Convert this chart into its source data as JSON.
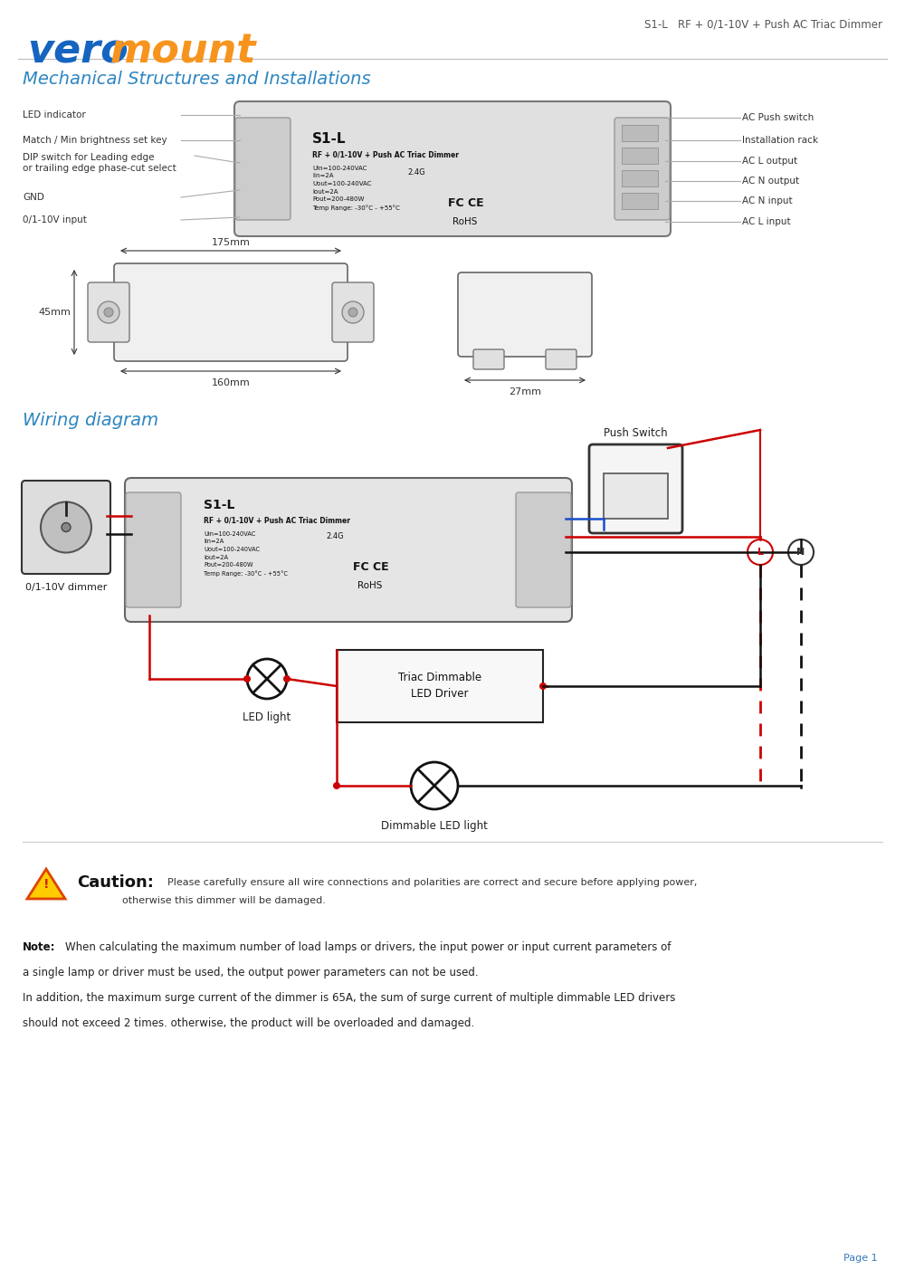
{
  "bg_color": "#ffffff",
  "logo_vero": "vero",
  "logo_mount": "mount",
  "logo_color_vero": "#1a6fba",
  "logo_color_mount": "#f7941d",
  "header_right": "S1-L   RF + 0/1-10V + Push AC Triac Dimmer",
  "section1_title": "Mechanical Structures and Installations",
  "section2_title": "Wiring diagram",
  "section_title_color": "#2e86c1",
  "left_labels": [
    "LED indicator",
    "Match / Min brightness set key",
    "DIP switch for Leading edge\nor trailing edge phase-cut select",
    "GND",
    "0/1-10V input"
  ],
  "right_labels": [
    "AC Push switch",
    "Installation rack",
    "AC L output",
    "AC N output",
    "AC N input",
    "AC L input"
  ],
  "device_label1": "S1-L",
  "device_label2": "RF + 0/1-10V + Push AC Triac Dimmer",
  "device_specs": "Uin=100-240VAC\nIin=2A\nUout=100-240VAC\nIout=2A\nPout=200-480W\nTemp Range: -30°C - +55°C",
  "dim_175": "175mm",
  "dim_45": "45mm",
  "dim_160": "160mm",
  "dim_27": "27mm",
  "wiring_label_left": "0/1-10V dimmer",
  "wiring_push": "Push Switch",
  "wiring_led": "LED light",
  "wiring_driver_title": "Triac Dimmable\nLED Driver",
  "wiring_dimmable": "Dimmable LED light",
  "caution_title": "Caution:",
  "caution_line1": "Please carefully ensure all wire connections and polarities are correct and secure before applying power,",
  "caution_line2": "otherwise this dimmer will be damaged.",
  "note_line1": "When calculating the maximum number of load lamps or drivers, the input power or input current parameters of",
  "note_line2": "a single lamp or driver must be used, the output power parameters can not be used.",
  "note_line3": "In addition, the maximum surge current of the dimmer is 65A, the sum of surge current of multiple dimmable LED drivers",
  "note_line4": "should not exceed 2 times. otherwise, the product will be overloaded and damaged.",
  "page_text": "Page 1",
  "red_wire": "#cc0000",
  "black_wire": "#111111",
  "blue_wire": "#1a4fcc"
}
